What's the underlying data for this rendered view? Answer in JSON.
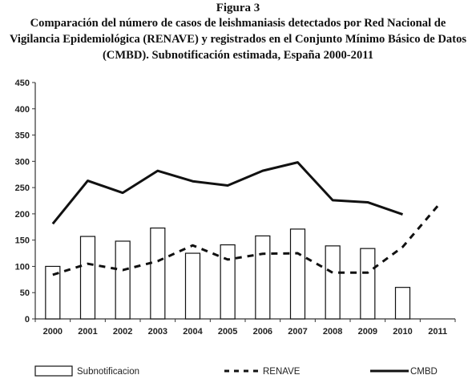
{
  "figure": {
    "label": "Figura 3",
    "title": "Comparación del número de casos de leishmaniasis detectados por Red Nacional de Vigilancia Epidemiológica (RENAVE) y registrados en el Conjunto Mínimo Básico de Datos (CMBD). Subnotificación estimada, España 2000-2011"
  },
  "chart_data": {
    "type": "bar",
    "categories": [
      "2000",
      "2001",
      "2002",
      "2003",
      "2004",
      "2005",
      "2006",
      "2007",
      "2008",
      "2009",
      "2010",
      "2011"
    ],
    "ylim": [
      0,
      450
    ],
    "yticks": [
      "0",
      "50",
      "100",
      "150",
      "200",
      "250",
      "300",
      "350",
      "400",
      "450"
    ],
    "grid": false,
    "legend_position": "bottom",
    "series": [
      {
        "name": "Subnotificacion",
        "kind": "bar",
        "values": [
          100,
          157,
          148,
          173,
          125,
          141,
          158,
          171,
          139,
          134,
          60,
          null
        ]
      },
      {
        "name": "RENAVE",
        "kind": "line",
        "style": "dashed",
        "values": [
          84,
          105,
          93,
          110,
          140,
          113,
          124,
          125,
          88,
          88,
          137,
          215
        ]
      },
      {
        "name": "CMBD",
        "kind": "line",
        "style": "solid",
        "values": [
          181,
          263,
          240,
          282,
          262,
          254,
          282,
          298,
          226,
          222,
          199,
          null
        ]
      }
    ],
    "colors": {
      "bar_fill": "#ffffff",
      "stroke": "#111111",
      "axis": "#333333"
    }
  }
}
